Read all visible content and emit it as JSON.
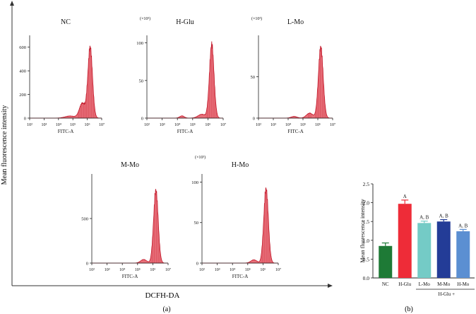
{
  "figure": {
    "outer_ylabel": "Mean fluorescence intensity",
    "outer_xlabel": "DCFH-DA",
    "panel_a_label": "(a)",
    "panel_b_label": "(b)"
  },
  "colors": {
    "histogram_fill": "#e8707a",
    "histogram_stroke": "#c2182a",
    "axis": "#222222"
  },
  "chart_data": [
    {
      "type": "area",
      "title": "NC",
      "xlabel": "FITC-A",
      "multiplier": "",
      "x_log_range": [
        2,
        7
      ],
      "x_ticks": [
        "10²",
        "10³",
        "10⁴",
        "10⁵",
        "10⁶",
        "10⁷"
      ],
      "ylim": [
        0,
        700
      ],
      "y_ticks": [
        "0",
        "200",
        "400",
        "600"
      ],
      "y_tick_values": [
        0,
        200,
        400,
        600
      ],
      "peaks": [
        {
          "center_log": 6.2,
          "height": 600,
          "width_log": 0.16
        },
        {
          "center_log": 5.65,
          "height": 125,
          "width_log": 0.2
        },
        {
          "center_log": 4.8,
          "height": 18,
          "width_log": 0.35
        }
      ]
    },
    {
      "type": "area",
      "title": "H-Glu",
      "xlabel": "FITC-A",
      "multiplier": "(×10³)",
      "x_log_range": [
        2,
        7
      ],
      "x_ticks": [
        "10²",
        "10³",
        "10⁴",
        "10⁵",
        "10⁶",
        "10⁷"
      ],
      "ylim": [
        0,
        110
      ],
      "y_ticks": [
        "0",
        "50",
        "100"
      ],
      "y_tick_values": [
        0,
        50,
        100
      ],
      "peaks": [
        {
          "center_log": 6.25,
          "height": 98,
          "width_log": 0.15
        },
        {
          "center_log": 5.6,
          "height": 5,
          "width_log": 0.25
        },
        {
          "center_log": 4.3,
          "height": 3,
          "width_log": 0.15
        }
      ]
    },
    {
      "type": "area",
      "title": "L-Mo",
      "xlabel": "FITC-A",
      "multiplier": "(×10³)",
      "x_log_range": [
        2,
        7
      ],
      "x_ticks": [
        "10²",
        "10³",
        "10⁴",
        "10⁵",
        "10⁶",
        "10⁷"
      ],
      "ylim": [
        0,
        100
      ],
      "y_ticks": [
        "0",
        "50"
      ],
      "y_tick_values": [
        0,
        50
      ],
      "peaks": [
        {
          "center_log": 6.2,
          "height": 86,
          "width_log": 0.16
        },
        {
          "center_log": 5.45,
          "height": 6,
          "width_log": 0.22
        },
        {
          "center_log": 4.4,
          "height": 2,
          "width_log": 0.2
        }
      ]
    },
    {
      "type": "area",
      "title": "M-Mo",
      "xlabel": "FITC-A",
      "multiplier": "",
      "x_log_range": [
        2,
        7
      ],
      "x_ticks": [
        "10²",
        "10³",
        "10⁴",
        "10⁵",
        "10⁶",
        "10⁷"
      ],
      "ylim": [
        0,
        1000
      ],
      "y_ticks": [
        "0",
        "500"
      ],
      "y_tick_values": [
        0,
        500
      ],
      "peaks": [
        {
          "center_log": 6.2,
          "height": 820,
          "width_log": 0.15
        },
        {
          "center_log": 5.4,
          "height": 40,
          "width_log": 0.2
        }
      ]
    },
    {
      "type": "area",
      "title": "H-Mo",
      "xlabel": "FITC-A",
      "multiplier": "(×10³)",
      "x_log_range": [
        2,
        7
      ],
      "x_ticks": [
        "10²",
        "10³",
        "10⁴",
        "10⁵",
        "10⁶",
        "10⁷"
      ],
      "ylim": [
        0,
        110
      ],
      "y_ticks": [
        "0",
        "50",
        "100"
      ],
      "y_tick_values": [
        0,
        50,
        100
      ],
      "peaks": [
        {
          "center_log": 6.2,
          "height": 92,
          "width_log": 0.15
        },
        {
          "center_log": 5.4,
          "height": 4,
          "width_log": 0.2
        }
      ]
    },
    {
      "type": "bar",
      "title": "",
      "xlabel": "",
      "ylabel": "Mean fluorescence intensity",
      "ylim": [
        0,
        2.5
      ],
      "y_ticks": [
        "0.0",
        "0.5",
        "1.0",
        "1.5",
        "2.0",
        "2.5"
      ],
      "y_tick_values": [
        0,
        0.5,
        1.0,
        1.5,
        2.0,
        2.5
      ],
      "categories": [
        "NC",
        "H-Glu",
        "L-Mo",
        "M-Mo",
        "H-Mo"
      ],
      "values": [
        0.85,
        1.97,
        1.46,
        1.5,
        1.24
      ],
      "errors": [
        0.08,
        0.1,
        0.05,
        0.05,
        0.05
      ],
      "colors": [
        "#1e7a36",
        "#ee2c38",
        "#74cbc6",
        "#233c97",
        "#5b8fd2"
      ],
      "annotations": [
        "",
        "A",
        "A, B",
        "A, B",
        "A, B"
      ],
      "group_label": "H-Glu +"
    }
  ]
}
